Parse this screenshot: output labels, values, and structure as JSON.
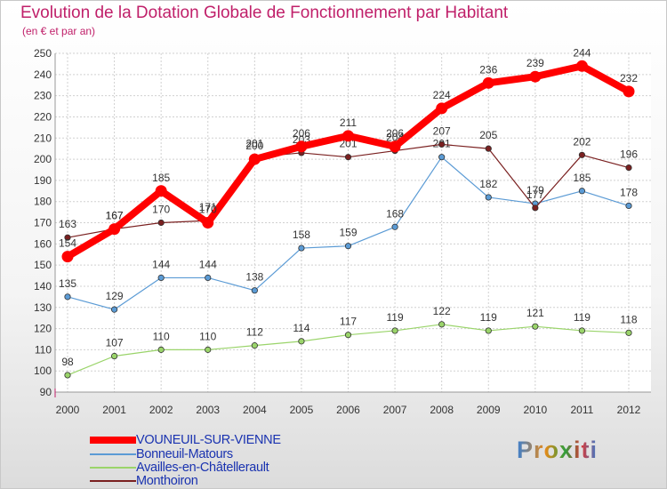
{
  "title": "Evolution de la Dotation Globale de Fonctionnement par Habitant",
  "subtitle": "(en € et par an)",
  "brand": "Proxiti",
  "chart_data": {
    "type": "line",
    "title": "Evolution de la Dotation Globale de Fonctionnement par Habitant",
    "ylabel": "(en € et par an)",
    "xlabel": "",
    "x": [
      "2000",
      "2001",
      "2002",
      "2003",
      "2004",
      "2005",
      "2006",
      "2007",
      "2008",
      "2009",
      "2010",
      "2011",
      "2012"
    ],
    "ylim": [
      90,
      250
    ],
    "yticks": [
      90,
      100,
      110,
      120,
      130,
      140,
      150,
      160,
      170,
      180,
      190,
      200,
      210,
      220,
      230,
      240,
      250
    ],
    "grid": true,
    "legend_position": "bottom-left",
    "series": [
      {
        "name": "VOUNEUIL-SUR-VIENNE",
        "color": "#ff0000",
        "emphasis": true,
        "values": [
          154,
          167,
          185,
          170,
          200,
          206,
          211,
          206,
          224,
          236,
          239,
          244,
          232
        ]
      },
      {
        "name": "Bonneuil-Matours",
        "color": "#5b9bd5",
        "values": [
          135,
          129,
          144,
          144,
          138,
          158,
          159,
          168,
          201,
          182,
          179,
          185,
          178
        ]
      },
      {
        "name": "Availles-en-Châtellerault",
        "color": "#9ad46a",
        "values": [
          98,
          107,
          110,
          110,
          112,
          114,
          117,
          119,
          122,
          119,
          121,
          119,
          118
        ]
      },
      {
        "name": "Monthoiron",
        "color": "#7a2020",
        "values": [
          163,
          167,
          170,
          171,
          201,
          203,
          201,
          204,
          207,
          205,
          177,
          202,
          196
        ]
      }
    ]
  }
}
